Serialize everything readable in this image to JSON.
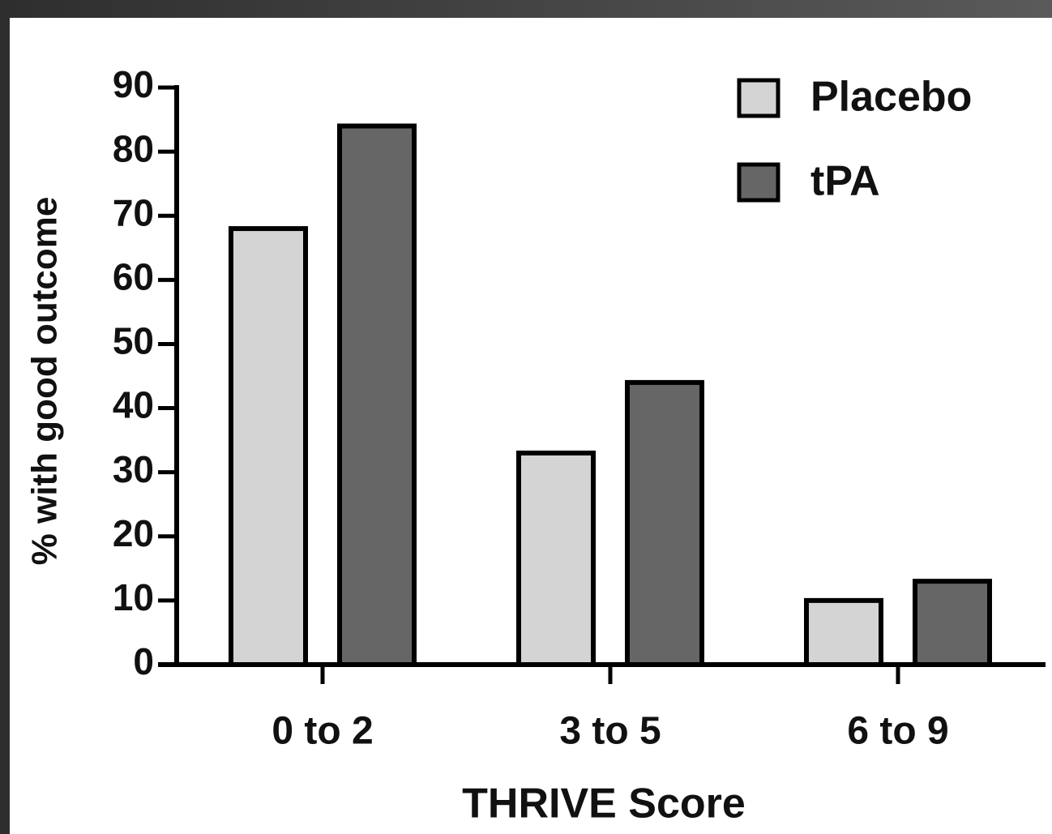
{
  "chart_data": {
    "type": "bar",
    "x_label": "THRIVE Score",
    "y_label": "% with good outcome",
    "categories": [
      "0 to 2",
      "3 to 5",
      "6 to 9"
    ],
    "series": [
      {
        "name": "Placebo",
        "color": "#d4d4d4",
        "values": [
          68,
          33,
          10
        ]
      },
      {
        "name": "tPA",
        "color": "#666666",
        "values": [
          84,
          44,
          13
        ]
      }
    ],
    "ylim": [
      0,
      90
    ],
    "yticks": [
      0,
      10,
      20,
      30,
      40,
      50,
      60,
      70,
      80,
      90
    ],
    "legend": "upper right"
  }
}
